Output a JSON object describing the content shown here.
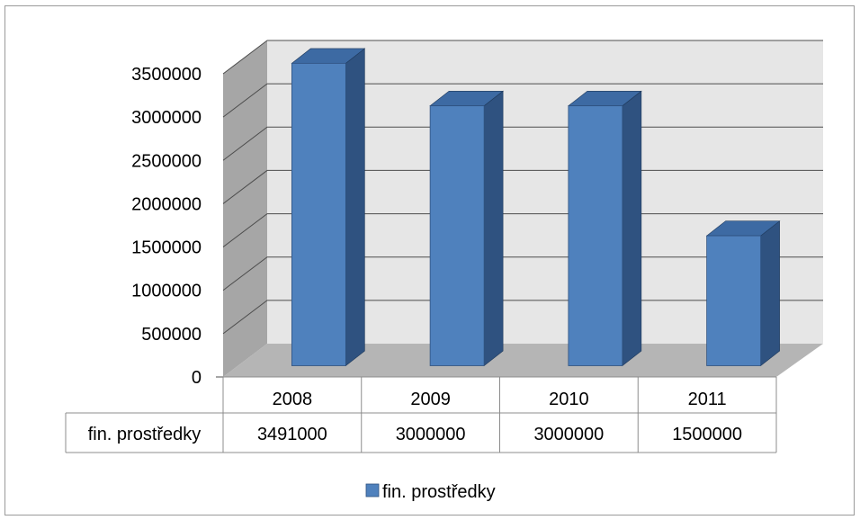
{
  "chart_data": {
    "type": "bar",
    "style": "3d-column",
    "categories": [
      "2008",
      "2009",
      "2010",
      "2011"
    ],
    "series": [
      {
        "name": "fin. prostředky",
        "values": [
          3491000,
          3000000,
          3000000,
          1500000
        ],
        "color": "#4f81bd"
      }
    ],
    "ylim": [
      0,
      3500000
    ],
    "yticks": [
      0,
      500000,
      1000000,
      1500000,
      2000000,
      2500000,
      3000000,
      3500000
    ],
    "grid": true,
    "legend": "bottom",
    "data_table": {
      "row_label": "fin. prostředky",
      "cells": [
        "3491000",
        "3000000",
        "3000000",
        "1500000"
      ]
    }
  },
  "colors": {
    "bar_front": "#4f81bd",
    "bar_side": "#2f5280",
    "bar_top": "#3d6aa3",
    "wall": "#e6e6e6",
    "side_wall": "#a6a6a6",
    "floor": "#b5b5b5",
    "grid": "#4d4d4d"
  }
}
